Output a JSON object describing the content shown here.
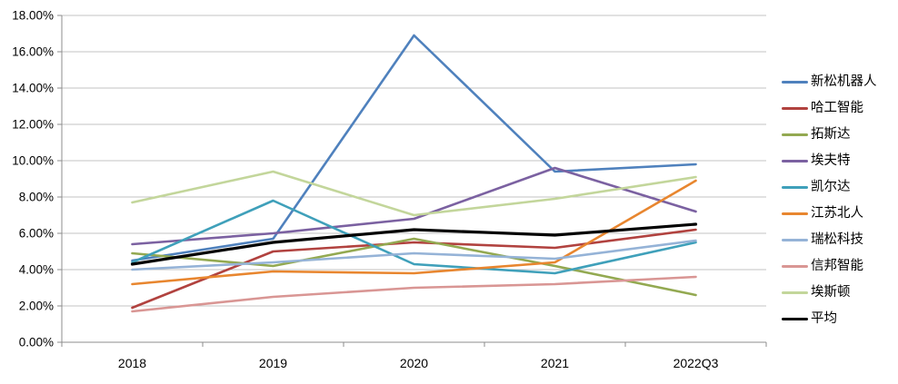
{
  "chart_data": {
    "type": "line",
    "title": "",
    "xlabel": "",
    "ylabel": "",
    "categories": [
      "2018",
      "2019",
      "2020",
      "2021",
      "2022Q3"
    ],
    "y_ticks": [
      "18.00%",
      "16.00%",
      "14.00%",
      "12.00%",
      "10.00%",
      "8.00%",
      "6.00%",
      "4.00%",
      "2.00%",
      "0.00%"
    ],
    "ylim": [
      0,
      18
    ],
    "y_step": 2,
    "grid": true,
    "legend_position": "right",
    "series": [
      {
        "name": "新松机器人",
        "color": "#4F81BD",
        "values": [
          4.5,
          5.7,
          16.9,
          9.4,
          9.8
        ]
      },
      {
        "name": "哈工智能",
        "color": "#B1423F",
        "values": [
          1.9,
          5.0,
          5.5,
          5.2,
          6.2
        ]
      },
      {
        "name": "拓斯达",
        "color": "#93A951",
        "values": [
          4.9,
          4.2,
          5.7,
          4.2,
          2.6
        ]
      },
      {
        "name": "埃夫特",
        "color": "#7B61A1",
        "values": [
          5.4,
          6.0,
          6.8,
          9.6,
          7.2
        ]
      },
      {
        "name": "凯尔达",
        "color": "#3FA0BA",
        "values": [
          4.4,
          7.8,
          4.3,
          3.8,
          5.5
        ]
      },
      {
        "name": "江苏北人",
        "color": "#E8862F",
        "values": [
          3.2,
          3.9,
          3.8,
          4.4,
          8.9
        ]
      },
      {
        "name": "瑞松科技",
        "color": "#95B3D7",
        "values": [
          4.0,
          4.4,
          4.9,
          4.6,
          5.6
        ]
      },
      {
        "name": "信邦智能",
        "color": "#D99694",
        "values": [
          1.7,
          2.5,
          3.0,
          3.2,
          3.6
        ]
      },
      {
        "name": "埃斯顿",
        "color": "#C3D69B",
        "values": [
          7.7,
          9.4,
          7.0,
          7.9,
          9.1
        ]
      },
      {
        "name": "平均",
        "color": "#000000",
        "values": [
          4.3,
          5.5,
          6.2,
          5.9,
          6.5
        ]
      }
    ]
  },
  "colors": {
    "background": "#FFFFFF",
    "gridline": "#C3C3C3",
    "axis": "#8C8C8C",
    "tick_text": "#000000"
  }
}
